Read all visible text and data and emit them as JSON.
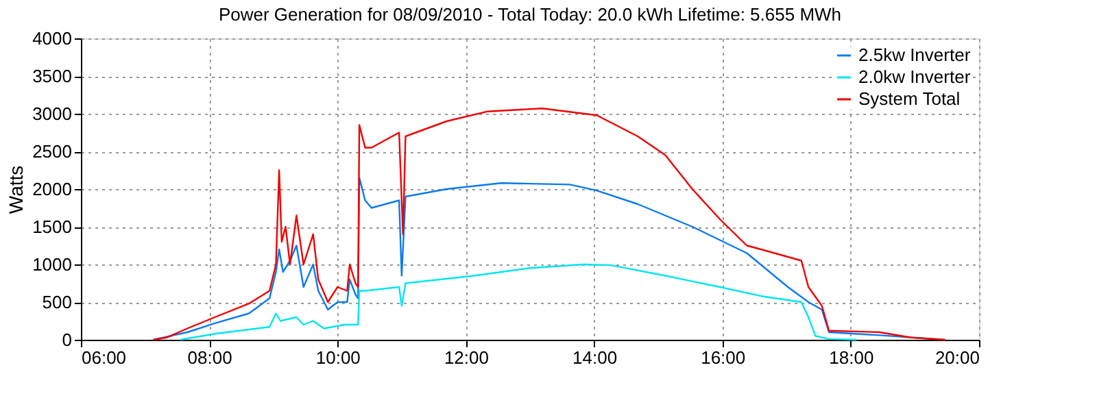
{
  "chart_data": {
    "type": "line",
    "title": "Power Generation for 08/09/2010 - Total Today: 20.0 kWh   Lifetime: 5.655 MWh",
    "ylabel": "Watts",
    "xlim": [
      6,
      20
    ],
    "xticks": [
      {
        "value": 6,
        "label": "06:00"
      },
      {
        "value": 8,
        "label": "08:00"
      },
      {
        "value": 10,
        "label": "10:00"
      },
      {
        "value": 12,
        "label": "12:00"
      },
      {
        "value": 14,
        "label": "14:00"
      },
      {
        "value": 16,
        "label": "16:00"
      },
      {
        "value": 18,
        "label": "18:00"
      },
      {
        "value": 20,
        "label": "20:00"
      }
    ],
    "ylim": [
      0,
      4000
    ],
    "yticks": [
      0,
      500,
      1000,
      1500,
      2000,
      2500,
      3000,
      3500,
      4000
    ],
    "grid": true,
    "legend": "top right",
    "marker": "none",
    "line_style": "solid",
    "series": [
      {
        "name": "2.5kw Inverter",
        "color": "#0a7af0",
        "x": [
          7.13,
          7.66,
          8.09,
          8.62,
          8.94,
          9.04,
          9.09,
          9.15,
          9.26,
          9.36,
          9.47,
          9.62,
          9.7,
          9.85,
          10.0,
          10.15,
          10.19,
          10.28,
          10.32,
          10.34,
          10.43,
          10.53,
          10.96,
          11.0,
          11.06,
          11.7,
          12.55,
          13.62,
          14.04,
          14.68,
          15.53,
          16.38,
          17.02,
          17.34,
          17.55,
          17.66,
          18.45,
          19.47
        ],
        "values": [
          0,
          100,
          220,
          350,
          550,
          900,
          1200,
          900,
          1050,
          1250,
          700,
          1000,
          650,
          400,
          500,
          500,
          800,
          600,
          550,
          2150,
          1850,
          1750,
          1850,
          850,
          1900,
          2000,
          2080,
          2060,
          1980,
          1800,
          1500,
          1150,
          700,
          500,
          400,
          100,
          60,
          0
        ]
      },
      {
        "name": "2.0kw Inverter",
        "color": "#00e5ee",
        "x": [
          7.55,
          8.09,
          8.94,
          9.04,
          9.11,
          9.36,
          9.47,
          9.62,
          9.79,
          10.11,
          10.32,
          10.34,
          10.43,
          10.96,
          11.0,
          11.06,
          12.13,
          12.98,
          13.83,
          14.26,
          15.11,
          15.96,
          16.6,
          17.23,
          17.34,
          17.45,
          17.66,
          18.09
        ],
        "values": [
          0,
          80,
          170,
          350,
          250,
          300,
          200,
          250,
          150,
          200,
          200,
          650,
          650,
          700,
          450,
          750,
          850,
          950,
          1000,
          990,
          850,
          700,
          580,
          500,
          300,
          50,
          10,
          0
        ]
      },
      {
        "name": "System Total",
        "color": "#f00000",
        "x": [
          7.13,
          7.34,
          7.66,
          8.09,
          8.62,
          8.94,
          9.04,
          9.09,
          9.13,
          9.19,
          9.26,
          9.36,
          9.47,
          9.62,
          9.7,
          9.85,
          10.0,
          10.15,
          10.19,
          10.28,
          10.32,
          10.34,
          10.43,
          10.53,
          10.96,
          11.02,
          11.06,
          11.7,
          12.34,
          13.19,
          14.04,
          14.68,
          15.11,
          15.53,
          15.96,
          16.38,
          16.6,
          17.23,
          17.34,
          17.55,
          17.66,
          18.45,
          18.94,
          19.47
        ],
        "values": [
          0,
          30,
          150,
          300,
          480,
          650,
          1000,
          2250,
          1300,
          1500,
          1000,
          1650,
          1000,
          1400,
          800,
          500,
          700,
          650,
          1000,
          750,
          700,
          2850,
          2550,
          2550,
          2750,
          1400,
          2700,
          2900,
          3030,
          3070,
          2980,
          2700,
          2450,
          2000,
          1600,
          1250,
          1200,
          1050,
          700,
          450,
          120,
          100,
          30,
          0
        ]
      }
    ]
  }
}
